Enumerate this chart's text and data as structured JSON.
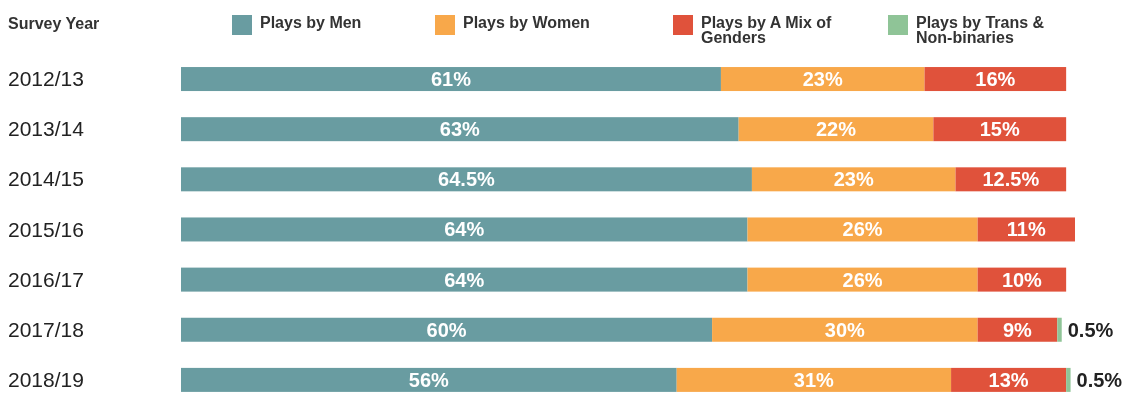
{
  "chart_data": {
    "type": "bar",
    "orientation": "horizontal",
    "stacked": true,
    "ylabel": "Survey Year",
    "legend": "top",
    "categories": [
      "2012/13",
      "2013/14",
      "2014/15",
      "2015/16",
      "2016/17",
      "2017/18",
      "2018/19"
    ],
    "series": [
      {
        "name": "Plays by Men",
        "color": "#699ca1",
        "values": [
          61,
          63,
          64.5,
          64,
          64,
          60,
          56
        ],
        "value_labels": [
          "61%",
          "63%",
          "64.5%",
          "64%",
          "64%",
          "60%",
          "56%"
        ]
      },
      {
        "name": "Plays by Women",
        "color": "#f8a84a",
        "values": [
          23,
          22,
          23,
          26,
          26,
          30,
          31
        ],
        "value_labels": [
          "23%",
          "22%",
          "23%",
          "26%",
          "26%",
          "30%",
          "31%"
        ]
      },
      {
        "name": "Plays by A Mix of Genders",
        "color": "#e0523b",
        "values": [
          16,
          15,
          12.5,
          11,
          10,
          9,
          13
        ],
        "value_labels": [
          "16%",
          "15%",
          "12.5%",
          "11%",
          "10%",
          "9%",
          "13%"
        ]
      },
      {
        "name": "Plays by Trans & Non-binaries",
        "color": "#8fc497",
        "values": [
          null,
          null,
          null,
          null,
          null,
          0.5,
          0.5
        ],
        "value_labels": [
          null,
          null,
          null,
          null,
          null,
          "0.5%",
          "0.5%"
        ]
      }
    ]
  }
}
